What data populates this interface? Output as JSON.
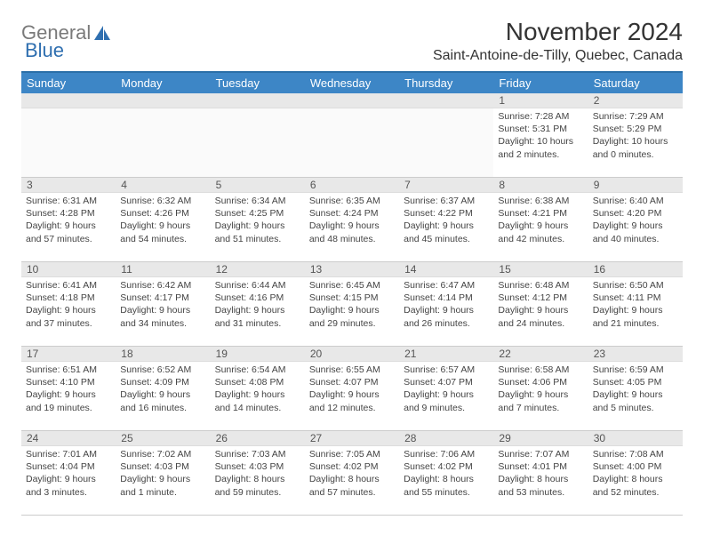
{
  "logo": {
    "text1": "General",
    "text2": "Blue"
  },
  "title": "November 2024",
  "subtitle": "Saint-Antoine-de-Tilly, Quebec, Canada",
  "colors": {
    "header_bg": "#3d86c6",
    "header_border": "#2a6fa8",
    "daynum_bg": "#e8e8e8",
    "cell_border": "#cccccc",
    "text": "#333333",
    "logo_gray": "#7a7a7a",
    "logo_blue": "#2f6fb0"
  },
  "day_names": [
    "Sunday",
    "Monday",
    "Tuesday",
    "Wednesday",
    "Thursday",
    "Friday",
    "Saturday"
  ],
  "weeks": [
    [
      {
        "day": "",
        "sunrise": "",
        "sunset": "",
        "daylight": ""
      },
      {
        "day": "",
        "sunrise": "",
        "sunset": "",
        "daylight": ""
      },
      {
        "day": "",
        "sunrise": "",
        "sunset": "",
        "daylight": ""
      },
      {
        "day": "",
        "sunrise": "",
        "sunset": "",
        "daylight": ""
      },
      {
        "day": "",
        "sunrise": "",
        "sunset": "",
        "daylight": ""
      },
      {
        "day": "1",
        "sunrise": "Sunrise: 7:28 AM",
        "sunset": "Sunset: 5:31 PM",
        "daylight": "Daylight: 10 hours and 2 minutes."
      },
      {
        "day": "2",
        "sunrise": "Sunrise: 7:29 AM",
        "sunset": "Sunset: 5:29 PM",
        "daylight": "Daylight: 10 hours and 0 minutes."
      }
    ],
    [
      {
        "day": "3",
        "sunrise": "Sunrise: 6:31 AM",
        "sunset": "Sunset: 4:28 PM",
        "daylight": "Daylight: 9 hours and 57 minutes."
      },
      {
        "day": "4",
        "sunrise": "Sunrise: 6:32 AM",
        "sunset": "Sunset: 4:26 PM",
        "daylight": "Daylight: 9 hours and 54 minutes."
      },
      {
        "day": "5",
        "sunrise": "Sunrise: 6:34 AM",
        "sunset": "Sunset: 4:25 PM",
        "daylight": "Daylight: 9 hours and 51 minutes."
      },
      {
        "day": "6",
        "sunrise": "Sunrise: 6:35 AM",
        "sunset": "Sunset: 4:24 PM",
        "daylight": "Daylight: 9 hours and 48 minutes."
      },
      {
        "day": "7",
        "sunrise": "Sunrise: 6:37 AM",
        "sunset": "Sunset: 4:22 PM",
        "daylight": "Daylight: 9 hours and 45 minutes."
      },
      {
        "day": "8",
        "sunrise": "Sunrise: 6:38 AM",
        "sunset": "Sunset: 4:21 PM",
        "daylight": "Daylight: 9 hours and 42 minutes."
      },
      {
        "day": "9",
        "sunrise": "Sunrise: 6:40 AM",
        "sunset": "Sunset: 4:20 PM",
        "daylight": "Daylight: 9 hours and 40 minutes."
      }
    ],
    [
      {
        "day": "10",
        "sunrise": "Sunrise: 6:41 AM",
        "sunset": "Sunset: 4:18 PM",
        "daylight": "Daylight: 9 hours and 37 minutes."
      },
      {
        "day": "11",
        "sunrise": "Sunrise: 6:42 AM",
        "sunset": "Sunset: 4:17 PM",
        "daylight": "Daylight: 9 hours and 34 minutes."
      },
      {
        "day": "12",
        "sunrise": "Sunrise: 6:44 AM",
        "sunset": "Sunset: 4:16 PM",
        "daylight": "Daylight: 9 hours and 31 minutes."
      },
      {
        "day": "13",
        "sunrise": "Sunrise: 6:45 AM",
        "sunset": "Sunset: 4:15 PM",
        "daylight": "Daylight: 9 hours and 29 minutes."
      },
      {
        "day": "14",
        "sunrise": "Sunrise: 6:47 AM",
        "sunset": "Sunset: 4:14 PM",
        "daylight": "Daylight: 9 hours and 26 minutes."
      },
      {
        "day": "15",
        "sunrise": "Sunrise: 6:48 AM",
        "sunset": "Sunset: 4:12 PM",
        "daylight": "Daylight: 9 hours and 24 minutes."
      },
      {
        "day": "16",
        "sunrise": "Sunrise: 6:50 AM",
        "sunset": "Sunset: 4:11 PM",
        "daylight": "Daylight: 9 hours and 21 minutes."
      }
    ],
    [
      {
        "day": "17",
        "sunrise": "Sunrise: 6:51 AM",
        "sunset": "Sunset: 4:10 PM",
        "daylight": "Daylight: 9 hours and 19 minutes."
      },
      {
        "day": "18",
        "sunrise": "Sunrise: 6:52 AM",
        "sunset": "Sunset: 4:09 PM",
        "daylight": "Daylight: 9 hours and 16 minutes."
      },
      {
        "day": "19",
        "sunrise": "Sunrise: 6:54 AM",
        "sunset": "Sunset: 4:08 PM",
        "daylight": "Daylight: 9 hours and 14 minutes."
      },
      {
        "day": "20",
        "sunrise": "Sunrise: 6:55 AM",
        "sunset": "Sunset: 4:07 PM",
        "daylight": "Daylight: 9 hours and 12 minutes."
      },
      {
        "day": "21",
        "sunrise": "Sunrise: 6:57 AM",
        "sunset": "Sunset: 4:07 PM",
        "daylight": "Daylight: 9 hours and 9 minutes."
      },
      {
        "day": "22",
        "sunrise": "Sunrise: 6:58 AM",
        "sunset": "Sunset: 4:06 PM",
        "daylight": "Daylight: 9 hours and 7 minutes."
      },
      {
        "day": "23",
        "sunrise": "Sunrise: 6:59 AM",
        "sunset": "Sunset: 4:05 PM",
        "daylight": "Daylight: 9 hours and 5 minutes."
      }
    ],
    [
      {
        "day": "24",
        "sunrise": "Sunrise: 7:01 AM",
        "sunset": "Sunset: 4:04 PM",
        "daylight": "Daylight: 9 hours and 3 minutes."
      },
      {
        "day": "25",
        "sunrise": "Sunrise: 7:02 AM",
        "sunset": "Sunset: 4:03 PM",
        "daylight": "Daylight: 9 hours and 1 minute."
      },
      {
        "day": "26",
        "sunrise": "Sunrise: 7:03 AM",
        "sunset": "Sunset: 4:03 PM",
        "daylight": "Daylight: 8 hours and 59 minutes."
      },
      {
        "day": "27",
        "sunrise": "Sunrise: 7:05 AM",
        "sunset": "Sunset: 4:02 PM",
        "daylight": "Daylight: 8 hours and 57 minutes."
      },
      {
        "day": "28",
        "sunrise": "Sunrise: 7:06 AM",
        "sunset": "Sunset: 4:02 PM",
        "daylight": "Daylight: 8 hours and 55 minutes."
      },
      {
        "day": "29",
        "sunrise": "Sunrise: 7:07 AM",
        "sunset": "Sunset: 4:01 PM",
        "daylight": "Daylight: 8 hours and 53 minutes."
      },
      {
        "day": "30",
        "sunrise": "Sunrise: 7:08 AM",
        "sunset": "Sunset: 4:00 PM",
        "daylight": "Daylight: 8 hours and 52 minutes."
      }
    ]
  ]
}
